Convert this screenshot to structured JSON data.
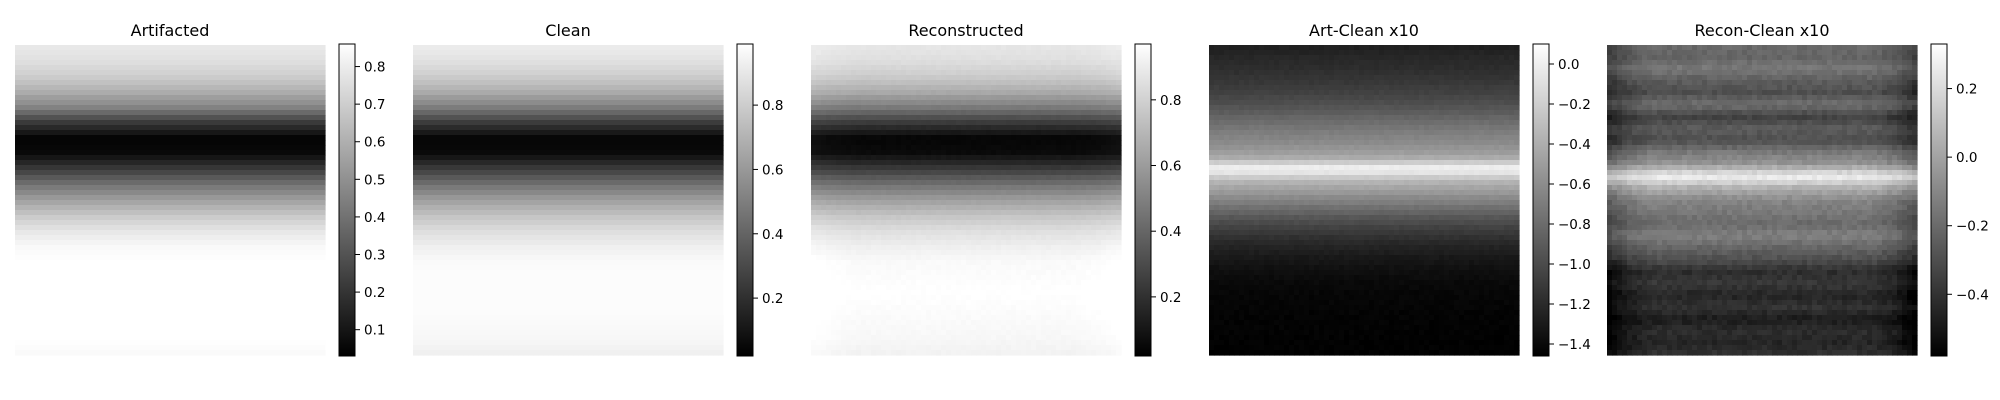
{
  "chart_data": [
    {
      "type": "heatmap",
      "title": "Artifacted",
      "colormap": "gray",
      "colorbar": {
        "ticks": [
          0.1,
          0.2,
          0.3,
          0.4,
          0.5,
          0.6,
          0.7,
          0.8
        ],
        "tick_labels": [
          "0.1",
          "0.2",
          "0.3",
          "0.4",
          "0.5",
          "0.6",
          "0.7",
          "0.8"
        ],
        "range": [
          0.03,
          0.86
        ]
      },
      "row_profile": [
        0.79,
        0.76,
        0.7,
        0.6,
        0.46,
        0.22,
        0.04,
        0.06,
        0.22,
        0.4,
        0.55,
        0.68,
        0.78,
        0.84,
        0.86,
        0.86,
        0.86,
        0.86,
        0.86,
        0.86,
        0.84
      ],
      "column_profile": [
        0,
        0
      ],
      "noise": 0
    },
    {
      "type": "heatmap",
      "title": "Clean",
      "colormap": "gray",
      "colorbar": {
        "ticks": [
          0.2,
          0.4,
          0.6,
          0.8
        ],
        "tick_labels": [
          "0.2",
          "0.4",
          "0.6",
          "0.8"
        ],
        "range": [
          0.02,
          0.99
        ]
      },
      "row_profile": [
        0.92,
        0.88,
        0.8,
        0.68,
        0.5,
        0.25,
        0.04,
        0.06,
        0.25,
        0.45,
        0.62,
        0.76,
        0.86,
        0.93,
        0.97,
        0.98,
        0.98,
        0.98,
        0.97,
        0.96,
        0.93
      ],
      "column_profile": [
        0,
        0
      ],
      "noise": 0
    },
    {
      "type": "heatmap",
      "title": "Reconstructed",
      "colormap": "gray",
      "colorbar": {
        "ticks": [
          0.2,
          0.4,
          0.6,
          0.8
        ],
        "tick_labels": [
          "0.2",
          "0.4",
          "0.6",
          "0.8"
        ],
        "range": [
          0.02,
          0.97
        ]
      },
      "row_profile": [
        0.88,
        0.85,
        0.78,
        0.66,
        0.48,
        0.24,
        0.04,
        0.06,
        0.24,
        0.44,
        0.61,
        0.75,
        0.85,
        0.91,
        0.95,
        0.96,
        0.97,
        0.96,
        0.95,
        0.94,
        0.92
      ],
      "column_profile": [
        0.03,
        0.01,
        0,
        0,
        0,
        0,
        0,
        0,
        0,
        0,
        0,
        0,
        0.01,
        0.03
      ],
      "noise": 0.012
    },
    {
      "type": "heatmap",
      "title": "Art-Clean x10",
      "colormap": "gray",
      "colorbar": {
        "ticks": [
          0.0,
          -0.2,
          -0.4,
          -0.6,
          -0.8,
          -1.0,
          -1.2,
          -1.4
        ],
        "tick_labels": [
          "0.0",
          "−0.2",
          "−0.4",
          "−0.6",
          "−0.8",
          "−1.0",
          "−1.2",
          "−1.4"
        ],
        "range": [
          -1.46,
          0.1
        ]
      },
      "row_profile": [
        -1.28,
        -1.22,
        -1.18,
        -1.12,
        -1.05,
        -0.95,
        -0.82,
        -0.7,
        -0.6,
        -0.45,
        0.05,
        -0.35,
        -0.55,
        -0.75,
        -0.95,
        -1.1,
        -1.22,
        -1.3,
        -1.36,
        -1.4,
        -1.42,
        -1.43,
        -1.44,
        -1.44,
        -1.45,
        -1.45
      ],
      "column_profile": [
        0,
        0
      ],
      "noise": 0.02
    },
    {
      "type": "heatmap",
      "title": "Recon-Clean x10",
      "colormap": "gray",
      "colorbar": {
        "ticks": [
          0.2,
          0.0,
          -0.2,
          -0.4
        ],
        "tick_labels": [
          "0.2",
          "0.0",
          "−0.2",
          "−0.4"
        ],
        "range": [
          -0.58,
          0.33
        ]
      },
      "row_profile": [
        -0.2,
        -0.22,
        -0.15,
        -0.25,
        -0.3,
        -0.18,
        -0.35,
        -0.25,
        -0.3,
        -0.15,
        -0.05,
        0.28,
        0.05,
        -0.1,
        -0.15,
        -0.2,
        -0.12,
        -0.22,
        -0.3,
        -0.42,
        -0.38,
        -0.45,
        -0.4,
        -0.48,
        -0.42,
        -0.45,
        -0.4
      ],
      "column_profile": [
        -0.15,
        -0.05,
        0,
        0,
        0,
        0,
        0,
        0,
        0,
        0,
        0,
        0,
        0,
        -0.05,
        -0.15
      ],
      "noise": 0.06
    }
  ]
}
